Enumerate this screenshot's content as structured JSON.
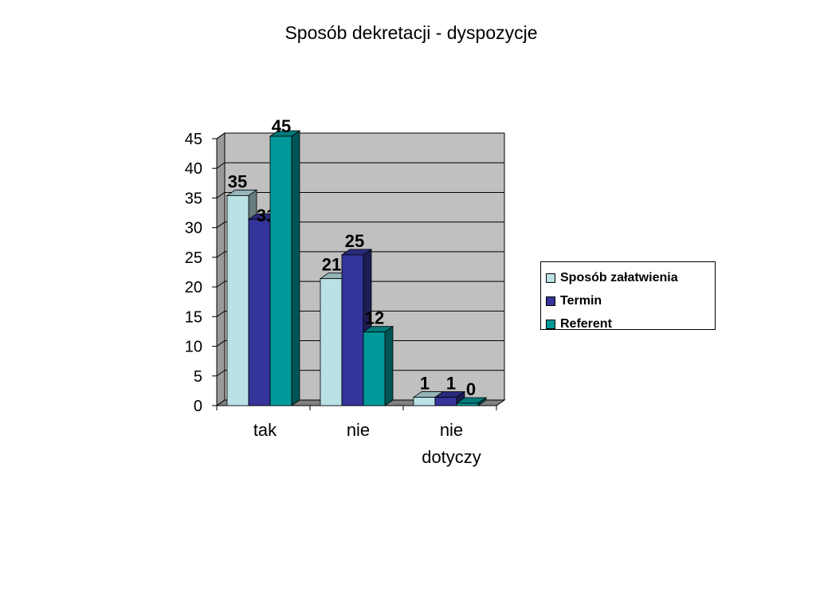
{
  "chart_data": {
    "type": "bar",
    "title": "Sposób dekretacji - dyspozycje",
    "categories": [
      "tak",
      "nie",
      "nie dotyczy"
    ],
    "category_lines": [
      [
        "tak"
      ],
      [
        "nie"
      ],
      [
        "nie",
        "dotyczy"
      ]
    ],
    "series": [
      {
        "name": "Sposób załatwienia",
        "values": [
          35,
          21,
          1
        ],
        "color": "#b9e1e6"
      },
      {
        "name": "Termin",
        "values": [
          31,
          25,
          1
        ],
        "color": "#34349b"
      },
      {
        "name": "Referent",
        "values": [
          45,
          12,
          0
        ],
        "color": "#00999a"
      }
    ],
    "ylim": [
      0,
      45
    ],
    "yticks": [
      0,
      5,
      10,
      15,
      20,
      25,
      30,
      35,
      40,
      45
    ],
    "grid": true,
    "legend": "right",
    "plot_background": "#c0c0c0"
  }
}
